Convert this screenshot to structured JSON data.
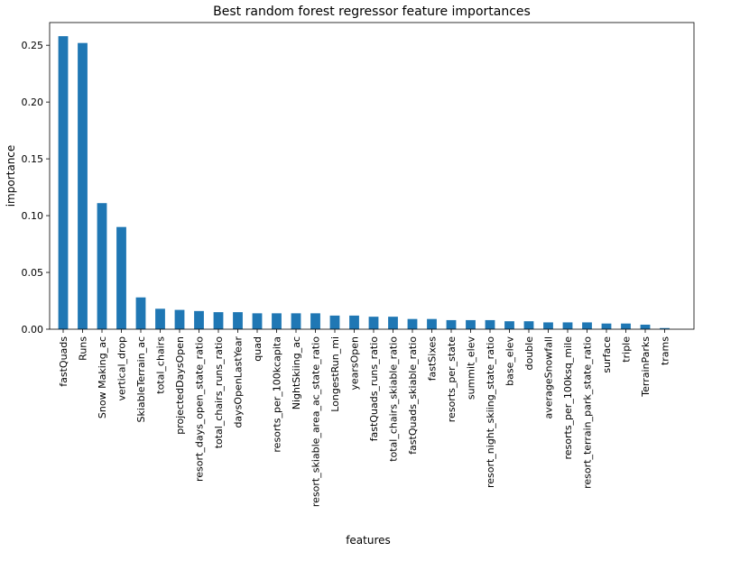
{
  "chart_data": {
    "type": "bar",
    "title": "Best random forest regressor feature importances",
    "xlabel": "features",
    "ylabel": "importance",
    "ylim": [
      0.0,
      0.27
    ],
    "yticks": [
      "0.00",
      "0.05",
      "0.10",
      "0.15",
      "0.20",
      "0.25"
    ],
    "grid": false,
    "bar_color": "#1f77b4",
    "categories": [
      "fastQuads",
      "Runs",
      "Snow Making_ac",
      "vertical_drop",
      "SkiableTerrain_ac",
      "total_chairs",
      "projectedDaysOpen",
      "resort_days_open_state_ratio",
      "total_chairs_runs_ratio",
      "daysOpenLastYear",
      "quad",
      "resorts_per_100kcapita",
      "NightSkiing_ac",
      "resort_skiable_area_ac_state_ratio",
      "LongestRun_mi",
      "yearsOpen",
      "fastQuads_runs_ratio",
      "total_chairs_skiable_ratio",
      "fastQuads_skiable_ratio",
      "fastSixes",
      "resorts_per_state",
      "summit_elev",
      "resort_night_skiing_state_ratio",
      "base_elev",
      "double",
      "averageSnowfall",
      "resorts_per_100ksq_mile",
      "resort_terrain_park_state_ratio",
      "surface",
      "triple",
      "TerrainParks",
      "trams"
    ],
    "values": [
      0.258,
      0.252,
      0.111,
      0.09,
      0.028,
      0.018,
      0.017,
      0.016,
      0.015,
      0.015,
      0.014,
      0.014,
      0.014,
      0.014,
      0.012,
      0.012,
      0.011,
      0.011,
      0.009,
      0.009,
      0.008,
      0.008,
      0.008,
      0.007,
      0.007,
      0.006,
      0.006,
      0.006,
      0.005,
      0.005,
      0.004,
      0.001
    ]
  }
}
